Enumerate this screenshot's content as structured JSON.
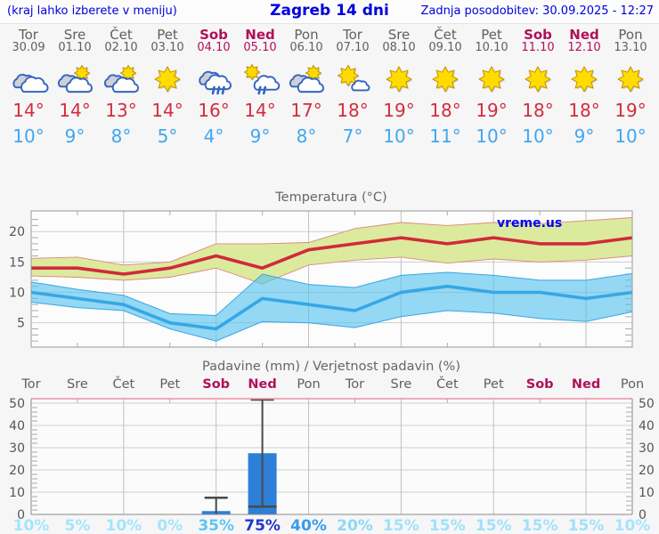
{
  "header": {
    "left_note": "(kraj lahko izberete v meniju)",
    "title": "Zagreb 14 dni",
    "updated": "Zadnja posodobitev: 30.09.2025 - 12:27"
  },
  "colors": {
    "accent_blue": "#0000dd",
    "weekday_text": "#5f5f5f",
    "weekend_text": "#b0105a",
    "tmax_text": "#d42c3c",
    "tmin_text": "#41a7ee",
    "line_max": "#d02a3a",
    "line_min": "#36a7e6",
    "band_max_fill": "#dcea9e",
    "band_max_edge": "#dd8877",
    "band_min_fill": "#54c2ee",
    "band_min_edge": "#36a7e6",
    "bar_fill": "#2d7fd8",
    "whisker": "#4a4a4a",
    "grid_major": "#cfcfcf",
    "grid_vertical": "#c0c0c0",
    "axis_border": "#999999",
    "precip_top_border": "#ee8fa4",
    "axis_text": "#555555",
    "title_text": "#666666",
    "watermark": "#0000ee"
  },
  "forecast": {
    "days": [
      {
        "name": "Tor",
        "date": "30.09",
        "weekend": false,
        "icon": "cloudy",
        "tmax": "14°",
        "tmin": "10°"
      },
      {
        "name": "Sre",
        "date": "01.10",
        "weekend": false,
        "icon": "partly",
        "tmax": "14°",
        "tmin": "9°"
      },
      {
        "name": "Čet",
        "date": "02.10",
        "weekend": false,
        "icon": "partly",
        "tmax": "13°",
        "tmin": "8°"
      },
      {
        "name": "Pet",
        "date": "03.10",
        "weekend": false,
        "icon": "sunny",
        "tmax": "14°",
        "tmin": "5°"
      },
      {
        "name": "Sob",
        "date": "04.10",
        "weekend": true,
        "icon": "rain",
        "tmax": "16°",
        "tmin": "4°"
      },
      {
        "name": "Ned",
        "date": "05.10",
        "weekend": true,
        "icon": "sun-rain",
        "tmax": "14°",
        "tmin": "9°"
      },
      {
        "name": "Pon",
        "date": "06.10",
        "weekend": false,
        "icon": "partly",
        "tmax": "17°",
        "tmin": "8°"
      },
      {
        "name": "Tor",
        "date": "07.10",
        "weekend": false,
        "icon": "mostly-sunny",
        "tmax": "18°",
        "tmin": "7°"
      },
      {
        "name": "Sre",
        "date": "08.10",
        "weekend": false,
        "icon": "sunny",
        "tmax": "19°",
        "tmin": "10°"
      },
      {
        "name": "Čet",
        "date": "09.10",
        "weekend": false,
        "icon": "sunny",
        "tmax": "18°",
        "tmin": "11°"
      },
      {
        "name": "Pet",
        "date": "10.10",
        "weekend": false,
        "icon": "sunny",
        "tmax": "19°",
        "tmin": "10°"
      },
      {
        "name": "Sob",
        "date": "11.10",
        "weekend": true,
        "icon": "sunny",
        "tmax": "18°",
        "tmin": "10°"
      },
      {
        "name": "Ned",
        "date": "12.10",
        "weekend": true,
        "icon": "sunny",
        "tmax": "18°",
        "tmin": "9°"
      },
      {
        "name": "Pon",
        "date": "13.10",
        "weekend": false,
        "icon": "sunny",
        "tmax": "19°",
        "tmin": "10°"
      }
    ]
  },
  "chart_data": [
    {
      "type": "line",
      "title": "Temperatura (°C)",
      "watermark": "vreme.us",
      "ylim": [
        1,
        23.4
      ],
      "yticks": [
        5,
        10,
        15,
        20
      ],
      "x_gridline_days": [
        2,
        4,
        6,
        8,
        10,
        12
      ],
      "x_categories": [
        "Tor",
        "Sre",
        "Čet",
        "Pet",
        "Sob",
        "Ned",
        "Pon",
        "Tor",
        "Sre",
        "Čet",
        "Pet",
        "Sob",
        "Ned",
        "Pon"
      ],
      "series": [
        {
          "name": "tmax",
          "values": [
            14,
            14,
            13,
            14,
            16,
            14,
            17,
            18,
            19,
            18,
            19,
            18,
            18,
            19
          ]
        },
        {
          "name": "tmax_range_upper",
          "values": [
            15.6,
            15.8,
            14.5,
            15,
            18,
            18,
            18.2,
            20.5,
            21.5,
            21,
            21.5,
            21.3,
            21.8,
            22.3
          ]
        },
        {
          "name": "tmax_range_lower",
          "values": [
            12.7,
            12.5,
            12,
            12.5,
            14,
            11.4,
            14.5,
            15.3,
            15.8,
            14.8,
            15.5,
            15,
            15.3,
            16
          ]
        },
        {
          "name": "tmin",
          "values": [
            10,
            9,
            8,
            5,
            4,
            9,
            8,
            7,
            10,
            11,
            10,
            10,
            9,
            10
          ]
        },
        {
          "name": "tmin_range_upper",
          "values": [
            11.7,
            10.5,
            9.5,
            6.5,
            6.2,
            13,
            11.3,
            10.8,
            12.8,
            13.3,
            12.8,
            12,
            12,
            13.1
          ]
        },
        {
          "name": "tmin_range_lower",
          "values": [
            8.4,
            7.5,
            7,
            4,
            2,
            5.2,
            5,
            4.2,
            6,
            7,
            6.6,
            5.7,
            5.2,
            6.8
          ]
        }
      ]
    },
    {
      "type": "bar",
      "title": "Padavine (mm) / Verjetnost padavin (%)",
      "categories": [
        "Tor",
        "Sre",
        "Čet",
        "Pet",
        "Sob",
        "Ned",
        "Pon",
        "Tor",
        "Sre",
        "Čet",
        "Pet",
        "Sob",
        "Ned",
        "Pon"
      ],
      "weekend": [
        false,
        false,
        false,
        false,
        true,
        true,
        false,
        false,
        false,
        false,
        false,
        true,
        true,
        false
      ],
      "values_mm": [
        0,
        0,
        0,
        0,
        1.5,
        27.5,
        0,
        0,
        0,
        0,
        0,
        0,
        0,
        0
      ],
      "whisker_low": [
        null,
        null,
        null,
        null,
        0,
        3.5,
        null,
        null,
        null,
        null,
        null,
        null,
        null,
        null
      ],
      "whisker_high": [
        null,
        null,
        null,
        null,
        7.5,
        52,
        null,
        null,
        null,
        null,
        null,
        null,
        null,
        null
      ],
      "ylim": [
        0,
        52
      ],
      "yticks": [
        0,
        10,
        20,
        30,
        40,
        50
      ],
      "x_gridline_days": [
        2,
        4,
        6,
        8,
        10,
        12
      ],
      "probabilities": [
        {
          "label": "10%",
          "color": "#a4e5fb"
        },
        {
          "label": "5%",
          "color": "#a4e5fb"
        },
        {
          "label": "10%",
          "color": "#a4e5fb"
        },
        {
          "label": "0%",
          "color": "#a4e5fb"
        },
        {
          "label": "35%",
          "color": "#5cc6f4"
        },
        {
          "label": "75%",
          "color": "#2337cf"
        },
        {
          "label": "40%",
          "color": "#389ceb"
        },
        {
          "label": "20%",
          "color": "#8cd9f7"
        },
        {
          "label": "15%",
          "color": "#9fe2fa"
        },
        {
          "label": "15%",
          "color": "#9fe2fa"
        },
        {
          "label": "15%",
          "color": "#9fe2fa"
        },
        {
          "label": "15%",
          "color": "#9fe2fa"
        },
        {
          "label": "15%",
          "color": "#9fe2fa"
        },
        {
          "label": "10%",
          "color": "#a4e5fb"
        }
      ]
    }
  ]
}
